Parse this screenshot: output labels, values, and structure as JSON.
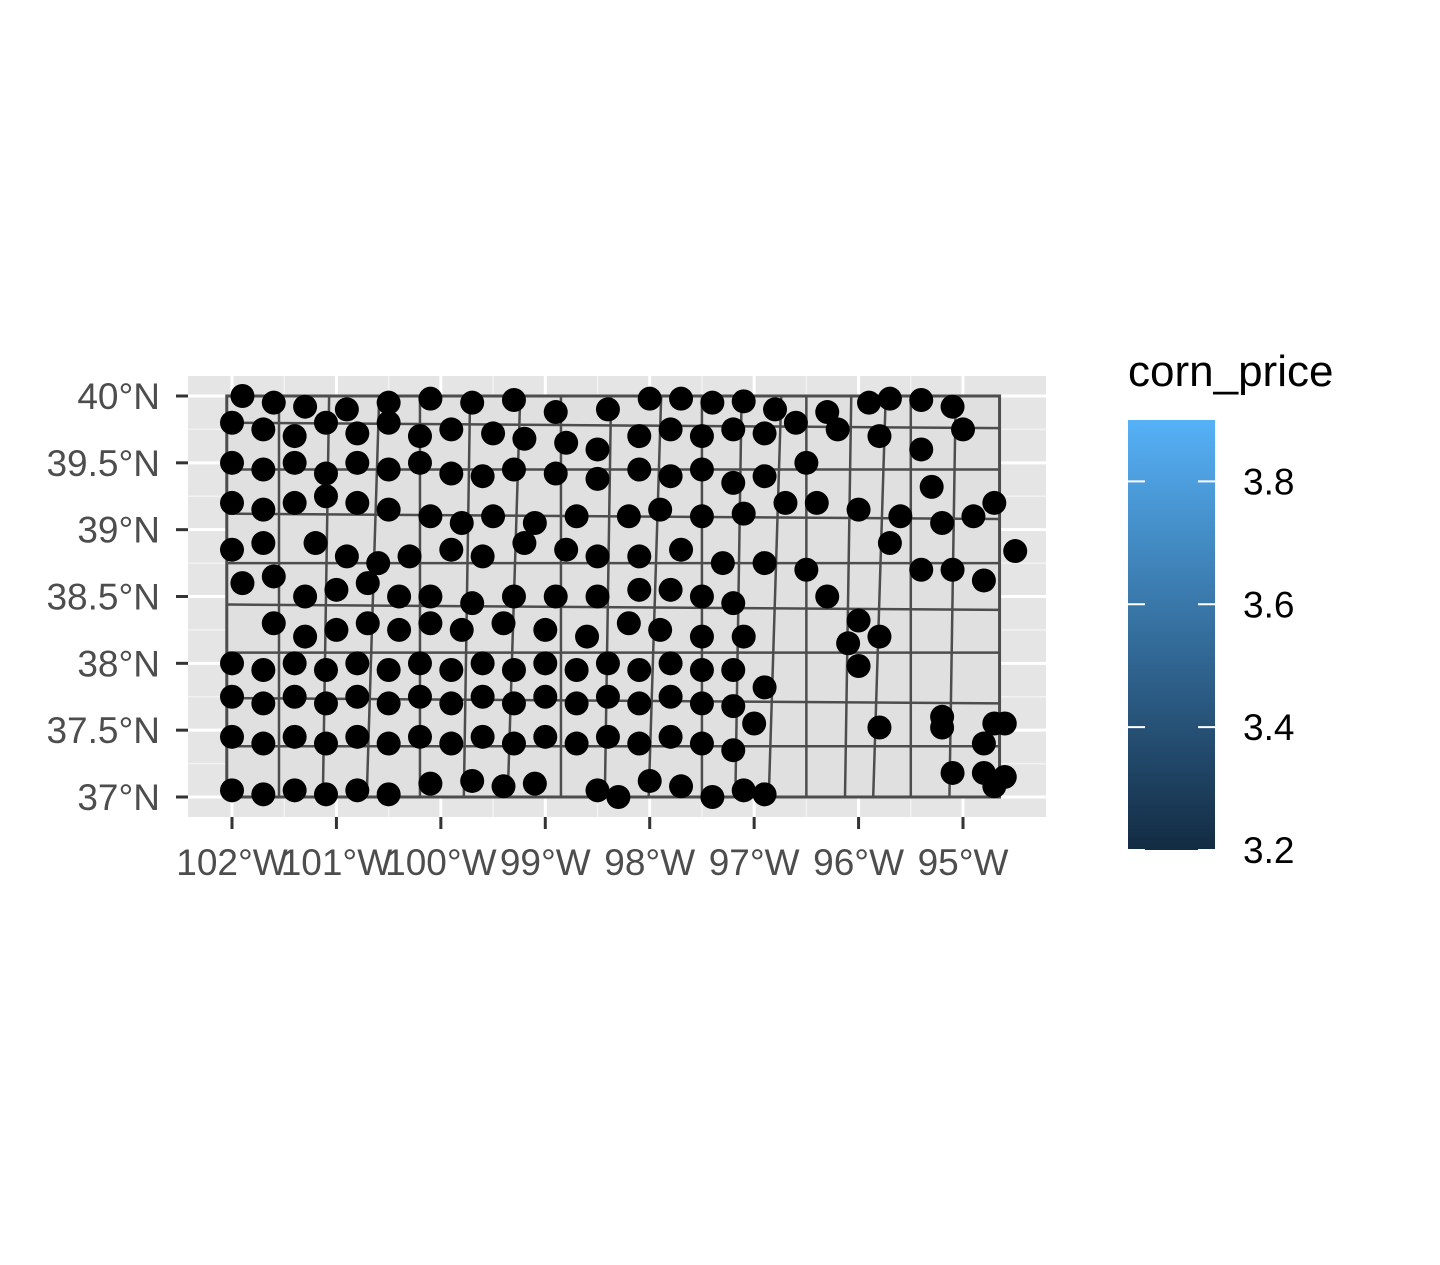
{
  "chart_data": {
    "type": "scatter",
    "title": "",
    "xlabel": "",
    "ylabel": "",
    "x_range": [
      -102.4,
      -94.4
    ],
    "y_range": [
      36.9,
      40.15
    ],
    "x_ticks": [
      {
        "value": -102,
        "label": "102°W"
      },
      {
        "value": -101,
        "label": "101°W"
      },
      {
        "value": -100,
        "label": "100°W"
      },
      {
        "value": -99,
        "label": "99°W"
      },
      {
        "value": -98,
        "label": "98°W"
      },
      {
        "value": -97,
        "label": "97°W"
      },
      {
        "value": -96,
        "label": "96°W"
      },
      {
        "value": -95,
        "label": "95°W"
      }
    ],
    "y_ticks": [
      {
        "value": 37,
        "label": "37°N"
      },
      {
        "value": 37.5,
        "label": "37.5°N"
      },
      {
        "value": 38,
        "label": "38°N"
      },
      {
        "value": 38.5,
        "label": "38.5°N"
      },
      {
        "value": 39,
        "label": "39°N"
      },
      {
        "value": 39.5,
        "label": "39.5°N"
      },
      {
        "value": 40,
        "label": "40°N"
      }
    ],
    "grid": true,
    "point_color": "#000000",
    "panel_color": "#e5e5e5",
    "boundary_color": "#4d4d4d",
    "legend": {
      "title": "corn_price",
      "placement": "right",
      "range": [
        3.2,
        3.9
      ],
      "color_low": "#132b43",
      "color_high": "#56b1f7",
      "ticks": [
        {
          "value": 3.2,
          "label": "3.2"
        },
        {
          "value": 3.4,
          "label": "3.4"
        },
        {
          "value": 3.6,
          "label": "3.6"
        },
        {
          "value": 3.8,
          "label": "3.8"
        }
      ]
    },
    "points": [
      [
        -101.9,
        40.0
      ],
      [
        -101.6,
        39.95
      ],
      [
        -101.3,
        39.92
      ],
      [
        -100.9,
        39.9
      ],
      [
        -100.5,
        39.95
      ],
      [
        -100.1,
        39.98
      ],
      [
        -99.7,
        39.95
      ],
      [
        -99.3,
        39.97
      ],
      [
        -98.9,
        39.88
      ],
      [
        -98.4,
        39.9
      ],
      [
        -98.0,
        39.98
      ],
      [
        -97.7,
        39.98
      ],
      [
        -97.4,
        39.95
      ],
      [
        -97.1,
        39.96
      ],
      [
        -96.8,
        39.9
      ],
      [
        -96.3,
        39.88
      ],
      [
        -95.9,
        39.95
      ],
      [
        -95.7,
        39.98
      ],
      [
        -95.4,
        39.97
      ],
      [
        -95.1,
        39.92
      ],
      [
        -102.0,
        39.8
      ],
      [
        -101.7,
        39.75
      ],
      [
        -101.4,
        39.7
      ],
      [
        -101.1,
        39.8
      ],
      [
        -100.8,
        39.72
      ],
      [
        -100.5,
        39.8
      ],
      [
        -100.2,
        39.7
      ],
      [
        -99.9,
        39.75
      ],
      [
        -99.5,
        39.72
      ],
      [
        -99.2,
        39.68
      ],
      [
        -98.8,
        39.65
      ],
      [
        -98.5,
        39.6
      ],
      [
        -98.1,
        39.7
      ],
      [
        -97.8,
        39.75
      ],
      [
        -97.5,
        39.7
      ],
      [
        -97.2,
        39.75
      ],
      [
        -96.9,
        39.72
      ],
      [
        -96.6,
        39.8
      ],
      [
        -96.2,
        39.75
      ],
      [
        -95.8,
        39.7
      ],
      [
        -95.4,
        39.6
      ],
      [
        -95.0,
        39.75
      ],
      [
        -102.0,
        39.5
      ],
      [
        -101.7,
        39.45
      ],
      [
        -101.4,
        39.5
      ],
      [
        -101.1,
        39.42
      ],
      [
        -100.8,
        39.5
      ],
      [
        -100.5,
        39.45
      ],
      [
        -100.2,
        39.5
      ],
      [
        -99.9,
        39.42
      ],
      [
        -99.6,
        39.4
      ],
      [
        -99.3,
        39.45
      ],
      [
        -98.9,
        39.42
      ],
      [
        -98.5,
        39.38
      ],
      [
        -98.1,
        39.45
      ],
      [
        -97.8,
        39.4
      ],
      [
        -97.5,
        39.45
      ],
      [
        -97.2,
        39.35
      ],
      [
        -96.9,
        39.4
      ],
      [
        -96.5,
        39.5
      ],
      [
        -95.3,
        39.32
      ],
      [
        -102.0,
        39.2
      ],
      [
        -101.7,
        39.15
      ],
      [
        -101.4,
        39.2
      ],
      [
        -101.1,
        39.25
      ],
      [
        -100.8,
        39.2
      ],
      [
        -100.5,
        39.15
      ],
      [
        -100.1,
        39.1
      ],
      [
        -99.8,
        39.05
      ],
      [
        -99.5,
        39.1
      ],
      [
        -99.1,
        39.05
      ],
      [
        -98.7,
        39.1
      ],
      [
        -98.2,
        39.1
      ],
      [
        -97.9,
        39.15
      ],
      [
        -97.5,
        39.1
      ],
      [
        -97.1,
        39.12
      ],
      [
        -96.7,
        39.2
      ],
      [
        -96.4,
        39.2
      ],
      [
        -96.0,
        39.15
      ],
      [
        -95.6,
        39.1
      ],
      [
        -95.2,
        39.05
      ],
      [
        -94.9,
        39.1
      ],
      [
        -94.7,
        39.2
      ],
      [
        -102.0,
        38.85
      ],
      [
        -101.7,
        38.9
      ],
      [
        -101.2,
        38.9
      ],
      [
        -100.9,
        38.8
      ],
      [
        -100.6,
        38.75
      ],
      [
        -100.3,
        38.8
      ],
      [
        -99.9,
        38.85
      ],
      [
        -99.6,
        38.8
      ],
      [
        -99.2,
        38.9
      ],
      [
        -98.8,
        38.85
      ],
      [
        -98.5,
        38.8
      ],
      [
        -98.1,
        38.8
      ],
      [
        -97.7,
        38.85
      ],
      [
        -97.3,
        38.75
      ],
      [
        -96.9,
        38.75
      ],
      [
        -96.5,
        38.7
      ],
      [
        -95.7,
        38.9
      ],
      [
        -95.4,
        38.7
      ],
      [
        -95.1,
        38.7
      ],
      [
        -94.8,
        38.62
      ],
      [
        -94.5,
        38.84
      ],
      [
        -101.9,
        38.6
      ],
      [
        -101.6,
        38.65
      ],
      [
        -101.3,
        38.5
      ],
      [
        -101.0,
        38.55
      ],
      [
        -100.7,
        38.6
      ],
      [
        -100.4,
        38.5
      ],
      [
        -100.1,
        38.5
      ],
      [
        -99.7,
        38.45
      ],
      [
        -99.3,
        38.5
      ],
      [
        -98.9,
        38.5
      ],
      [
        -98.5,
        38.5
      ],
      [
        -98.1,
        38.55
      ],
      [
        -97.8,
        38.55
      ],
      [
        -97.5,
        38.5
      ],
      [
        -97.2,
        38.45
      ],
      [
        -96.3,
        38.5
      ],
      [
        -96.0,
        38.32
      ],
      [
        -101.6,
        38.3
      ],
      [
        -101.3,
        38.2
      ],
      [
        -101.0,
        38.25
      ],
      [
        -100.7,
        38.3
      ],
      [
        -100.4,
        38.25
      ],
      [
        -100.1,
        38.3
      ],
      [
        -99.8,
        38.25
      ],
      [
        -99.4,
        38.3
      ],
      [
        -99.0,
        38.25
      ],
      [
        -98.6,
        38.2
      ],
      [
        -98.2,
        38.3
      ],
      [
        -97.9,
        38.25
      ],
      [
        -97.5,
        38.2
      ],
      [
        -97.1,
        38.2
      ],
      [
        -96.1,
        38.15
      ],
      [
        -95.8,
        38.2
      ],
      [
        -102.0,
        38.0
      ],
      [
        -101.7,
        37.95
      ],
      [
        -101.4,
        38.0
      ],
      [
        -101.1,
        37.95
      ],
      [
        -100.8,
        38.0
      ],
      [
        -100.5,
        37.95
      ],
      [
        -100.2,
        38.0
      ],
      [
        -99.9,
        37.95
      ],
      [
        -99.6,
        38.0
      ],
      [
        -99.3,
        37.95
      ],
      [
        -99.0,
        38.0
      ],
      [
        -98.7,
        37.95
      ],
      [
        -98.4,
        38.0
      ],
      [
        -98.1,
        37.95
      ],
      [
        -97.8,
        38.0
      ],
      [
        -97.5,
        37.95
      ],
      [
        -97.2,
        37.95
      ],
      [
        -96.0,
        37.98
      ],
      [
        -102.0,
        37.75
      ],
      [
        -101.7,
        37.7
      ],
      [
        -101.4,
        37.75
      ],
      [
        -101.1,
        37.7
      ],
      [
        -100.8,
        37.75
      ],
      [
        -100.5,
        37.7
      ],
      [
        -100.2,
        37.75
      ],
      [
        -99.9,
        37.7
      ],
      [
        -99.6,
        37.75
      ],
      [
        -99.3,
        37.7
      ],
      [
        -99.0,
        37.75
      ],
      [
        -98.7,
        37.7
      ],
      [
        -98.4,
        37.75
      ],
      [
        -98.1,
        37.7
      ],
      [
        -97.8,
        37.75
      ],
      [
        -97.5,
        37.7
      ],
      [
        -97.2,
        37.68
      ],
      [
        -96.9,
        37.82
      ],
      [
        -97.0,
        37.55
      ],
      [
        -102.0,
        37.45
      ],
      [
        -101.7,
        37.4
      ],
      [
        -101.4,
        37.45
      ],
      [
        -101.1,
        37.4
      ],
      [
        -100.8,
        37.45
      ],
      [
        -100.5,
        37.4
      ],
      [
        -100.2,
        37.45
      ],
      [
        -99.9,
        37.4
      ],
      [
        -99.6,
        37.45
      ],
      [
        -99.3,
        37.4
      ],
      [
        -99.0,
        37.45
      ],
      [
        -98.7,
        37.4
      ],
      [
        -98.4,
        37.45
      ],
      [
        -98.1,
        37.4
      ],
      [
        -97.8,
        37.45
      ],
      [
        -97.5,
        37.4
      ],
      [
        -97.2,
        37.35
      ],
      [
        -95.8,
        37.52
      ],
      [
        -95.2,
        37.6
      ],
      [
        -95.2,
        37.52
      ],
      [
        -94.7,
        37.55
      ],
      [
        -94.6,
        37.55
      ],
      [
        -94.8,
        37.4
      ],
      [
        -102.0,
        37.05
      ],
      [
        -101.7,
        37.02
      ],
      [
        -101.4,
        37.05
      ],
      [
        -101.1,
        37.02
      ],
      [
        -100.8,
        37.05
      ],
      [
        -100.5,
        37.02
      ],
      [
        -100.1,
        37.1
      ],
      [
        -99.7,
        37.12
      ],
      [
        -99.4,
        37.08
      ],
      [
        -99.1,
        37.1
      ],
      [
        -98.5,
        37.05
      ],
      [
        -98.3,
        37.0
      ],
      [
        -98.0,
        37.12
      ],
      [
        -97.7,
        37.08
      ],
      [
        -97.4,
        37.0
      ],
      [
        -97.1,
        37.05
      ],
      [
        -96.9,
        37.02
      ],
      [
        -95.1,
        37.18
      ],
      [
        -94.8,
        37.18
      ],
      [
        -94.7,
        37.08
      ],
      [
        -94.6,
        37.15
      ]
    ]
  }
}
